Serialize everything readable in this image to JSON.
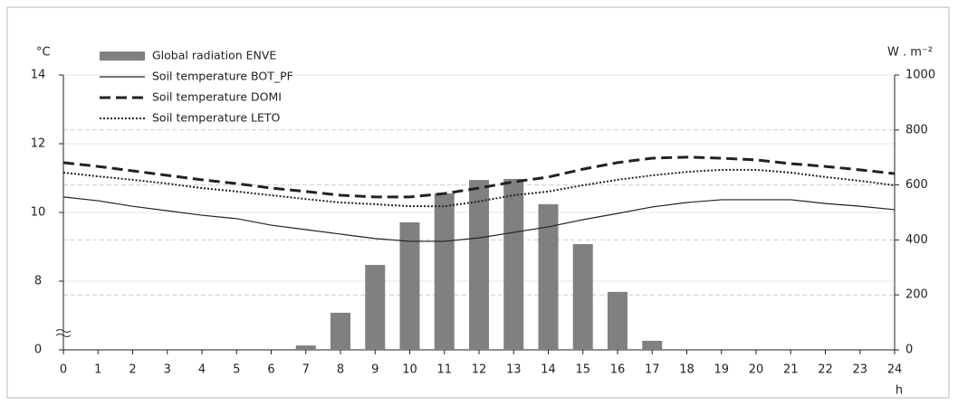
{
  "chart_data": {
    "type": "combo",
    "y_label": "°C",
    "y2_label": "W . m⁻²",
    "x_label": "h",
    "x": [
      0,
      1,
      2,
      3,
      4,
      5,
      6,
      7,
      8,
      9,
      10,
      11,
      12,
      13,
      14,
      15,
      16,
      17,
      18,
      19,
      20,
      21,
      22,
      23,
      24
    ],
    "xlim": [
      0,
      24
    ],
    "xticks": [
      0,
      1,
      2,
      3,
      4,
      5,
      6,
      7,
      8,
      9,
      10,
      11,
      12,
      13,
      14,
      15,
      16,
      17,
      18,
      19,
      20,
      21,
      22,
      23,
      24
    ],
    "ylim": [
      0,
      14
    ],
    "y_break": [
      0,
      6
    ],
    "yticks": [
      0,
      8,
      10,
      12,
      14
    ],
    "y2lim": [
      0,
      1000
    ],
    "y2ticks": [
      0,
      200,
      400,
      600,
      800,
      1000
    ],
    "grid": true,
    "legend": "upper left",
    "series": [
      {
        "name": "Global radiation ENVE",
        "type": "bar",
        "axis": "y2",
        "color": "#808080",
        "values": [
          null,
          null,
          null,
          null,
          null,
          null,
          null,
          16,
          135,
          309,
          464,
          569,
          618,
          622,
          530,
          385,
          211,
          33,
          null,
          null,
          null,
          null,
          null,
          null,
          null
        ]
      },
      {
        "name": "Soil temperature BOT_PF",
        "type": "line",
        "style": "solid",
        "color": "#222222",
        "values": [
          10.45,
          10.34,
          10.18,
          10.05,
          9.92,
          9.82,
          9.63,
          9.5,
          9.37,
          9.24,
          9.16,
          9.16,
          9.26,
          9.42,
          9.58,
          9.79,
          9.97,
          10.16,
          10.29,
          10.37,
          10.37,
          10.37,
          10.26,
          10.18,
          10.08
        ]
      },
      {
        "name": "Soil temperature DOMI",
        "type": "line",
        "style": "dashed",
        "color": "#222222",
        "values": [
          11.45,
          11.34,
          11.21,
          11.08,
          10.95,
          10.84,
          10.71,
          10.61,
          10.5,
          10.45,
          10.45,
          10.55,
          10.71,
          10.89,
          11.03,
          11.26,
          11.45,
          11.58,
          11.61,
          11.58,
          11.53,
          11.42,
          11.34,
          11.24,
          11.13
        ]
      },
      {
        "name": "Soil temperature LETO",
        "type": "line",
        "style": "dotted",
        "color": "#222222",
        "values": [
          11.16,
          11.05,
          10.95,
          10.84,
          10.71,
          10.61,
          10.5,
          10.39,
          10.29,
          10.24,
          10.18,
          10.18,
          10.32,
          10.5,
          10.61,
          10.79,
          10.95,
          11.08,
          11.18,
          11.24,
          11.24,
          11.16,
          11.03,
          10.92,
          10.79
        ]
      }
    ]
  }
}
